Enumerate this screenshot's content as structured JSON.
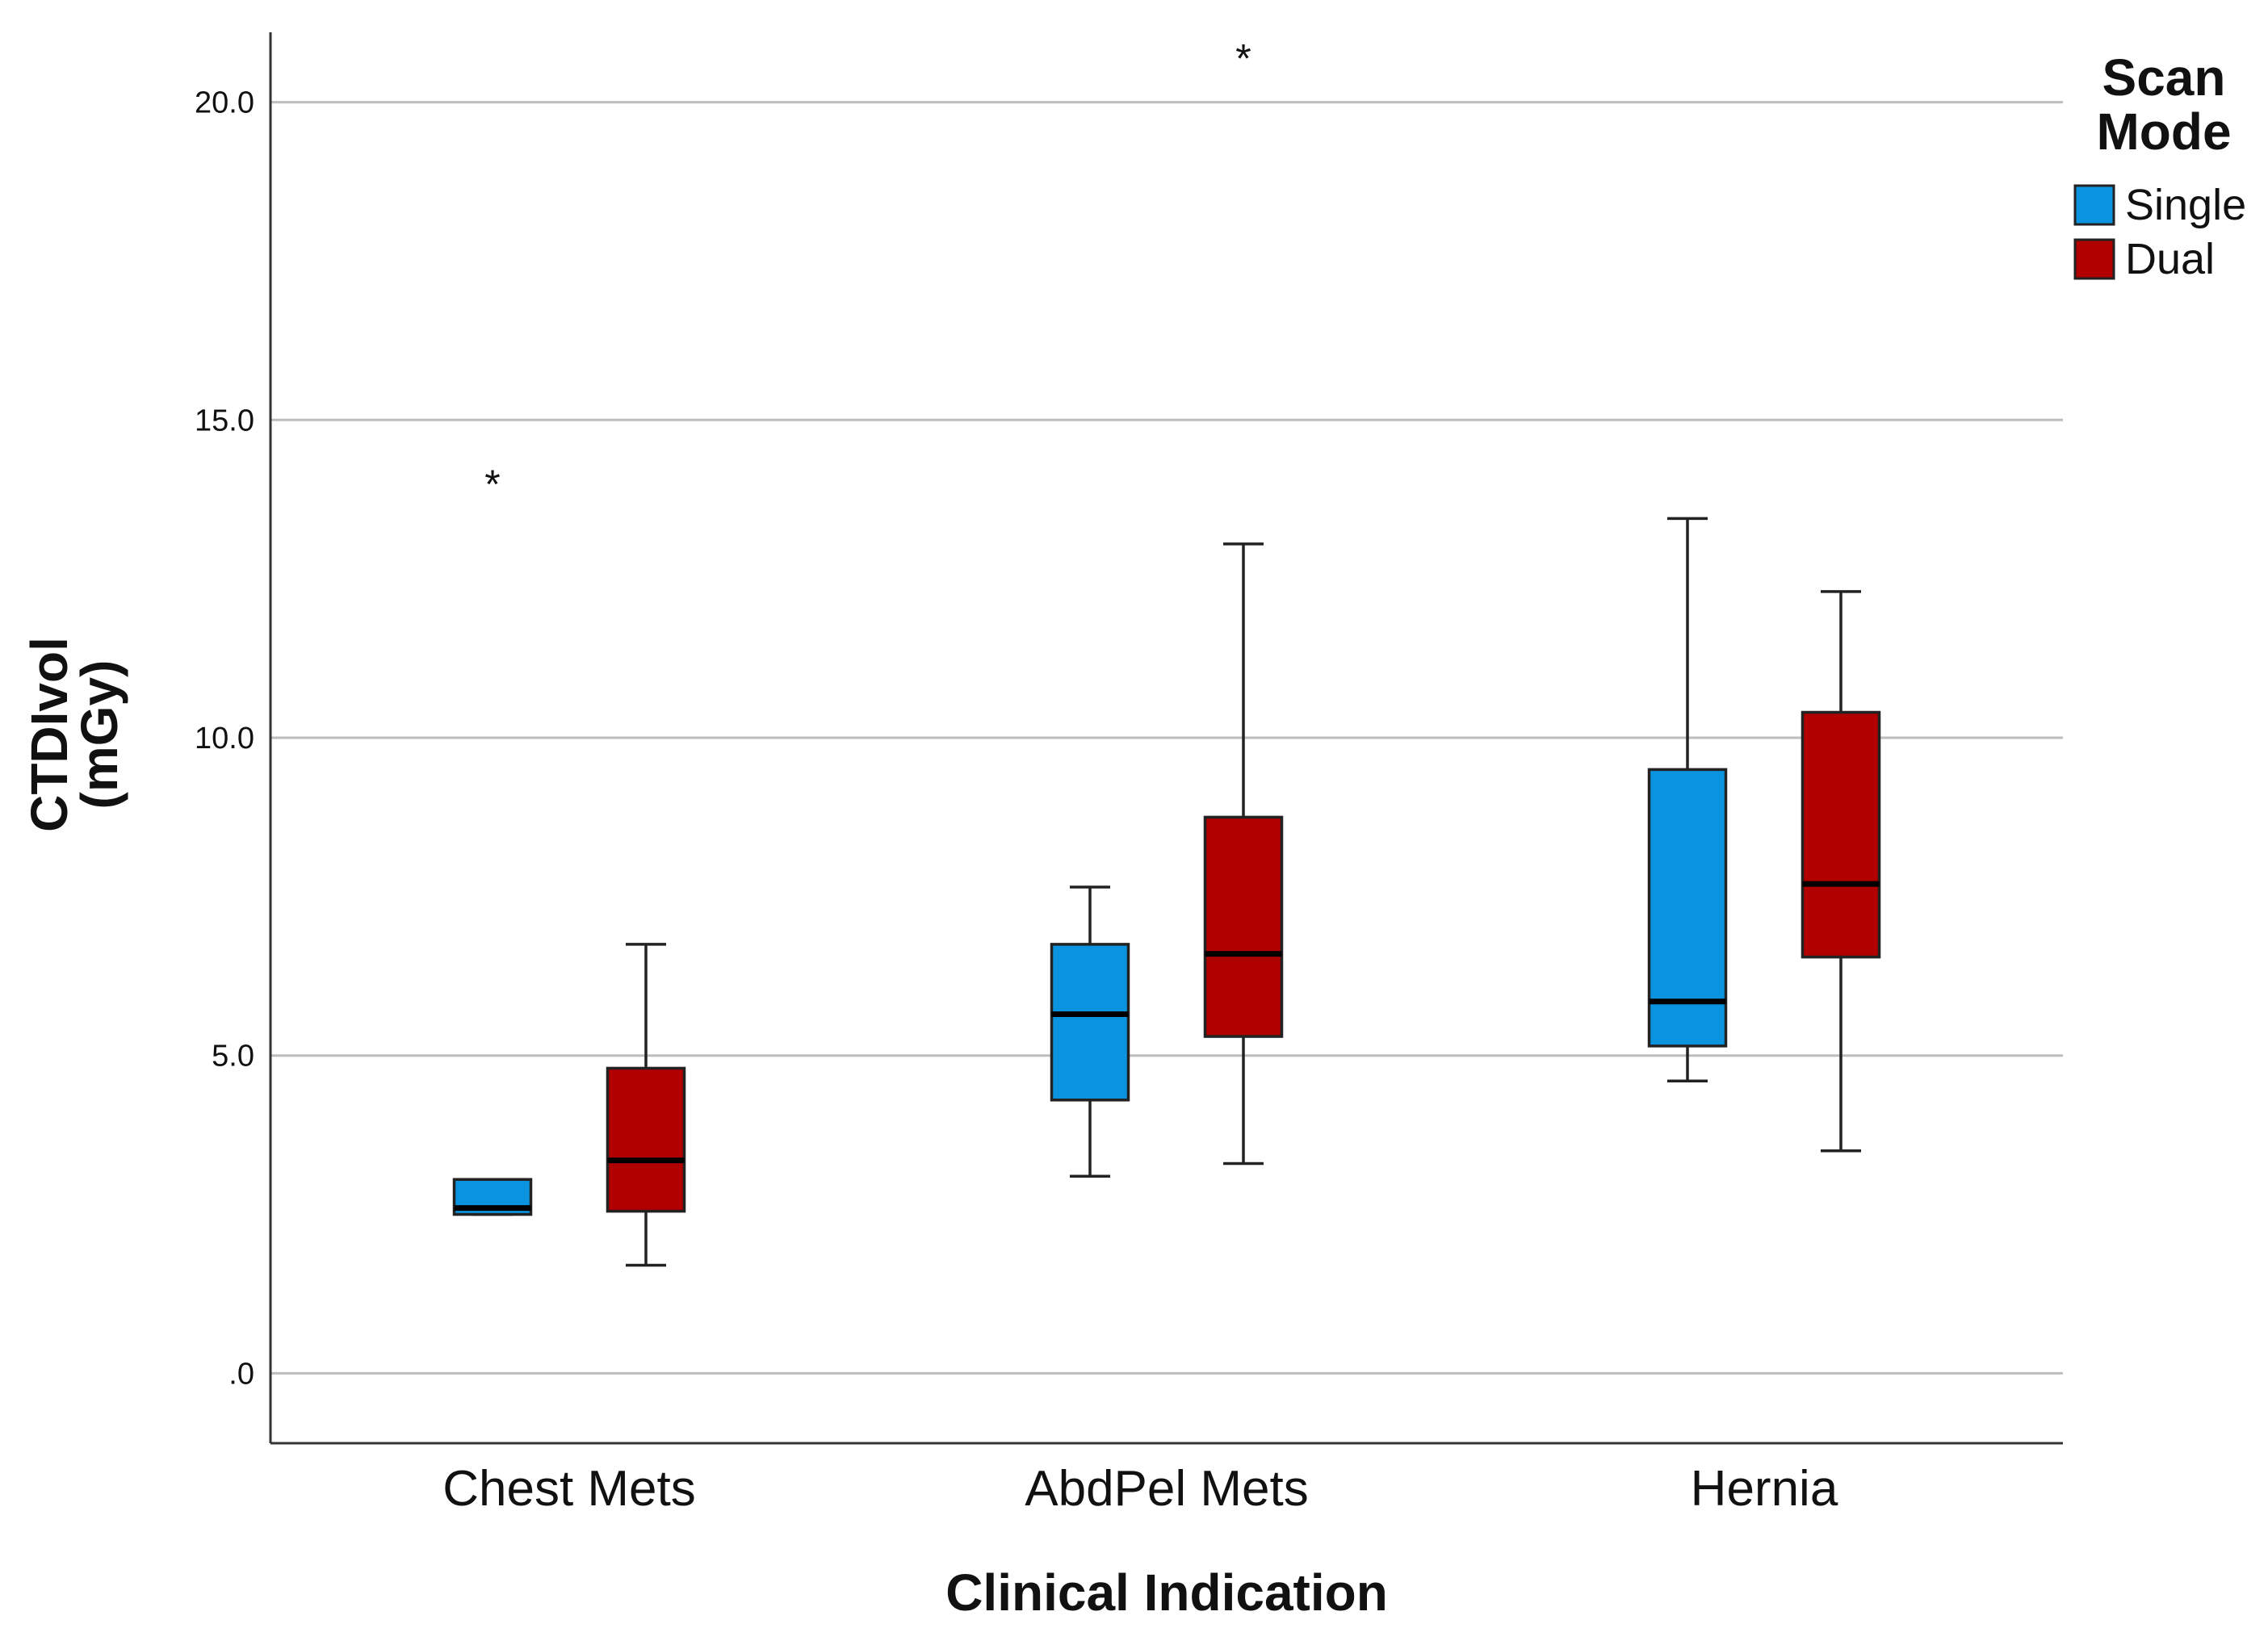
{
  "chart_data": {
    "type": "box",
    "title": "",
    "xlabel": "Clinical Indication",
    "ylabel_lines": [
      "CTDIvol",
      "(mGy)"
    ],
    "ylim": [
      -1.1,
      21.1
    ],
    "yticks": [
      {
        "value": 0,
        "label": ".0"
      },
      {
        "value": 5,
        "label": "5.0"
      },
      {
        "value": 10,
        "label": "10.0"
      },
      {
        "value": 15,
        "label": "15.0"
      },
      {
        "value": 20,
        "label": "20.0"
      }
    ],
    "grid": true,
    "legend": {
      "title_lines": [
        "Scan",
        "Mode"
      ],
      "position": "top-right"
    },
    "categories": [
      "Chest Mets",
      "AbdPel Mets",
      "Hernia"
    ],
    "series": [
      {
        "name": "Single",
        "color": "#0a94e0",
        "boxes": [
          {
            "whisker_low": 2.5,
            "q1": 2.5,
            "median": 2.6,
            "q3": 3.05,
            "whisker_high": 3.05,
            "outliers": [
              14.05
            ]
          },
          {
            "whisker_low": 3.1,
            "q1": 4.3,
            "median": 5.65,
            "q3": 6.75,
            "whisker_high": 7.65,
            "outliers": []
          },
          {
            "whisker_low": 4.6,
            "q1": 5.15,
            "median": 5.85,
            "q3": 9.5,
            "whisker_high": 13.45,
            "outliers": []
          }
        ]
      },
      {
        "name": "Dual",
        "color": "#b00000",
        "boxes": [
          {
            "whisker_low": 1.7,
            "q1": 2.55,
            "median": 3.35,
            "q3": 4.8,
            "whisker_high": 6.75,
            "outliers": []
          },
          {
            "whisker_low": 3.3,
            "q1": 5.3,
            "median": 6.6,
            "q3": 8.75,
            "whisker_high": 13.05,
            "outliers": [
              20.75
            ]
          },
          {
            "whisker_low": 3.5,
            "q1": 6.55,
            "median": 7.7,
            "q3": 10.4,
            "whisker_high": 12.3,
            "outliers": []
          }
        ]
      }
    ]
  }
}
